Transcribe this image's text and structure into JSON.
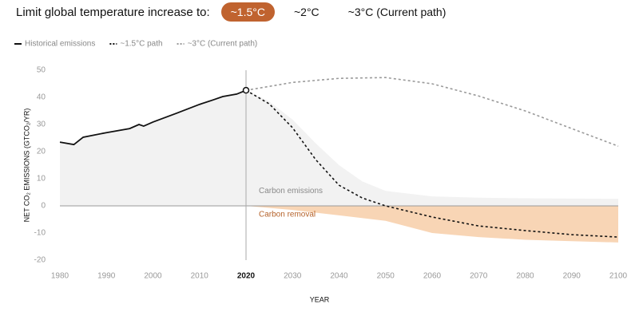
{
  "controls": {
    "label": "Limit global temperature increase to:",
    "options": [
      "~1.5°C",
      "~2°C",
      "~3°C (Current path)"
    ],
    "selected": 0
  },
  "chart_data": {
    "type": "line",
    "x_label": "YEAR",
    "y_label": "NET CO₂ EMISSIONS (GTCO₂/YR)",
    "xlim": [
      1980,
      2100
    ],
    "xticks": [
      1980,
      1990,
      2000,
      2010,
      2020,
      2030,
      2040,
      2050,
      2060,
      2070,
      2080,
      2090,
      2100
    ],
    "ylim": [
      -20,
      50
    ],
    "yticks": [
      -20,
      -10,
      0,
      10,
      20,
      30,
      40,
      50
    ],
    "highlight_x": 2020,
    "series": [
      {
        "name": "Historical emissions",
        "color": "#111111",
        "style": "solid",
        "fill": "#f2f2f2",
        "x": [
          1980,
          1983,
          1985,
          1990,
          1995,
          1997,
          1998,
          2000,
          2005,
          2010,
          2013,
          2015,
          2018,
          2020
        ],
        "values": [
          23.5,
          22.6,
          25.3,
          27,
          28.5,
          30,
          29.4,
          30.9,
          34.1,
          37.4,
          39.1,
          40.3,
          41.2,
          42.6
        ]
      },
      {
        "name": "~1.5°C path",
        "color": "#111111",
        "style": "dotted",
        "x": [
          2020,
          2025,
          2030,
          2035,
          2040,
          2045,
          2050,
          2060,
          2070,
          2080,
          2090,
          2100
        ],
        "values": [
          42.6,
          37.6,
          28.8,
          17,
          7.6,
          2.9,
          0,
          -4.1,
          -7.4,
          -9.1,
          -10.6,
          -11.5
        ]
      },
      {
        "name": "~3°C (Current path)",
        "color": "#9a9a9a",
        "style": "dotted",
        "x": [
          2020,
          2030,
          2040,
          2050,
          2060,
          2070,
          2080,
          2090,
          2100
        ],
        "values": [
          42.6,
          45.5,
          47,
          47.3,
          45,
          40.5,
          35,
          28.5,
          22
        ]
      }
    ],
    "bands": [
      {
        "name": "Carbon emissions",
        "color": "#f2f2f2",
        "label_color": "#8a8a8a",
        "x": [
          2020,
          2025,
          2030,
          2035,
          2040,
          2045,
          2050,
          2060,
          2070,
          2080,
          2090,
          2100
        ],
        "values": [
          42.6,
          38.5,
          31.8,
          23,
          15,
          9,
          5.5,
          3.5,
          3,
          2.8,
          2.7,
          2.6
        ]
      },
      {
        "name": "Carbon removal",
        "color": "#f8d5b5",
        "label_color": "#b5622a",
        "x": [
          2020,
          2030,
          2040,
          2050,
          2060,
          2070,
          2080,
          2090,
          2100
        ],
        "values": [
          0,
          -1.5,
          -3.5,
          -5.5,
          -10,
          -11.5,
          -12.5,
          -13,
          -13.5
        ]
      }
    ]
  }
}
